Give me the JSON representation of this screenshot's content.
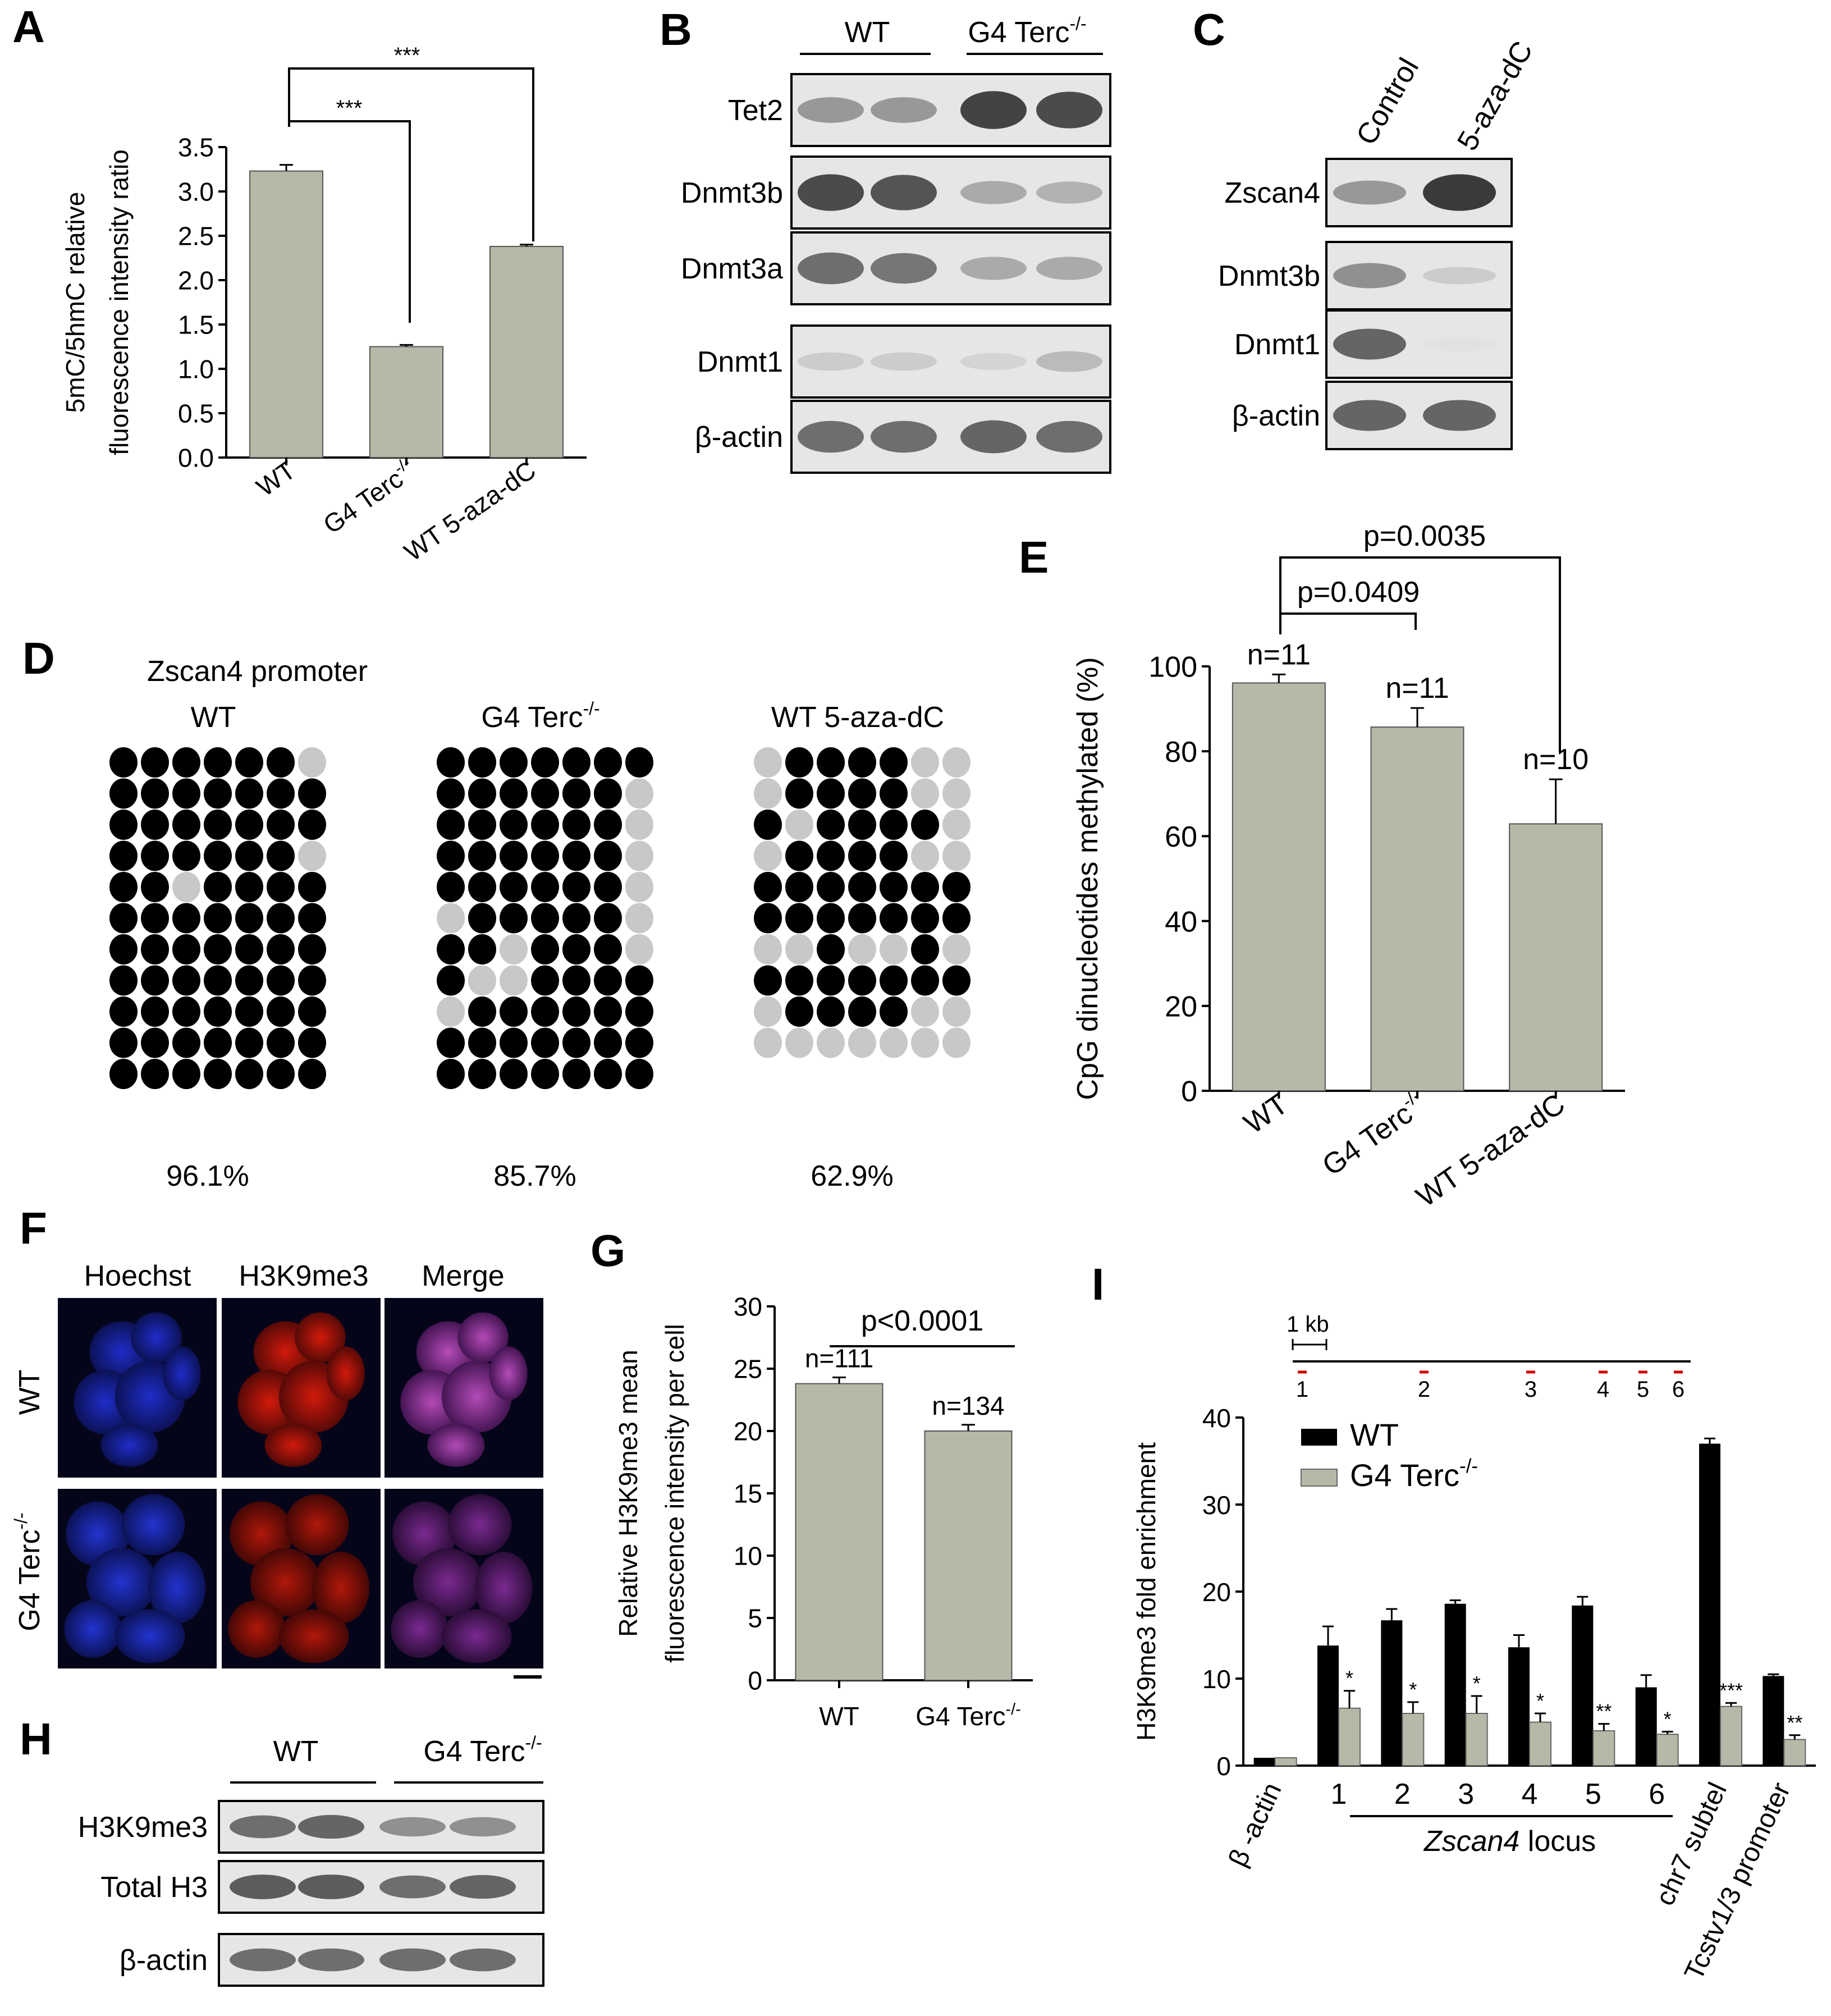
{
  "colors": {
    "bar_gray": "#b8b8a8",
    "bar_black": "#000000",
    "cpg_unmeth": "#c8c8c8",
    "blot_bg": "#e6e6e6",
    "blot_band": "#3a3a3a"
  },
  "panels": {
    "A": {
      "letter": "A",
      "sig1": "***",
      "sig2": "***"
    },
    "B": {
      "letter": "B",
      "group1": "WT",
      "group2": "G4 Terc",
      "group2_sup": "-/-",
      "rows": [
        "Tet2",
        "Dnmt3b",
        "Dnmt3a",
        "Dnmt1",
        "β-actin"
      ],
      "band_intensity": [
        [
          0.45,
          0.45,
          0.95,
          0.9
        ],
        [
          0.9,
          0.85,
          0.35,
          0.3
        ],
        [
          0.7,
          0.65,
          0.35,
          0.35
        ],
        [
          0.15,
          0.15,
          0.1,
          0.25
        ],
        [
          0.7,
          0.7,
          0.75,
          0.7
        ]
      ]
    },
    "C": {
      "letter": "C",
      "lanes": [
        "Control",
        "5-aza-dC"
      ],
      "rows": [
        "Zscan4",
        "Dnmt3b",
        "Dnmt1",
        "β-actin"
      ],
      "band_intensity": [
        [
          0.45,
          1.0
        ],
        [
          0.5,
          0.15
        ],
        [
          0.75,
          0.02
        ],
        [
          0.75,
          0.75
        ]
      ]
    },
    "D": {
      "letter": "D",
      "title": "Zscan4 promoter",
      "groups": [
        {
          "label": "WT",
          "sup": "",
          "percent": "96.1%",
          "rows": [
            "1111110",
            "1111111",
            "1111111",
            "1111110",
            "1101111",
            "1111111",
            "1111111",
            "1111111",
            "1111111",
            "1111111",
            "1111111"
          ]
        },
        {
          "label": "G4 Terc",
          "sup": "-/-",
          "percent": "85.7%",
          "rows": [
            "1111111",
            "1111110",
            "1111110",
            "1111110",
            "1111110",
            "0111110",
            "1101110",
            "1001111",
            "0111111",
            "1111111",
            "1111111"
          ]
        },
        {
          "label": "WT 5-aza-dC",
          "sup": "",
          "percent": "62.9%",
          "rows": [
            "0111100",
            "0111100",
            "1011110",
            "0111100",
            "1111111",
            "1111111",
            "0010010",
            "1111111",
            "0111100",
            "0000000"
          ]
        }
      ]
    },
    "E": {
      "letter": "E",
      "p1": "p=0.0409",
      "p2": "p=0.0035"
    },
    "F": {
      "letter": "F",
      "cols": [
        "Hoechst",
        "H3K9me3",
        "Merge"
      ],
      "row1": "WT",
      "row2": "G4 Terc",
      "row2_sup": "-/-"
    },
    "G": {
      "letter": "G",
      "p": "p<0.0001"
    },
    "H": {
      "letter": "H",
      "group1": "WT",
      "group2": "G4 Terc",
      "group2_sup": "-/-",
      "rows": [
        "H3K9me3",
        "Total H3",
        "β-actin"
      ],
      "band_intensity": [
        [
          0.7,
          0.75,
          0.5,
          0.5
        ],
        [
          0.8,
          0.8,
          0.7,
          0.75
        ],
        [
          0.7,
          0.7,
          0.7,
          0.7
        ]
      ]
    },
    "I": {
      "letter": "I",
      "scale_label": "1 kb",
      "map_sites": [
        "1",
        "2",
        "3",
        "4",
        "5",
        "6"
      ],
      "locus_label": "Zscan4",
      "locus_suffix": " locus"
    }
  },
  "chart_data": [
    {
      "id": "A",
      "type": "bar",
      "ylabel_line1": "5mC/5hmC relative",
      "ylabel_line2": "fluorescence intensity ratio",
      "categories": [
        "WT",
        "G4 Terc",
        "WT 5-aza-dC"
      ],
      "category_sups": [
        "",
        "-/-",
        ""
      ],
      "values": [
        3.23,
        1.25,
        2.38
      ],
      "errors": [
        0.07,
        0.02,
        0.02
      ],
      "ylim": [
        0,
        3.5
      ],
      "yticks": [
        "0.0",
        "0.5",
        "1.0",
        "1.5",
        "2.0",
        "2.5",
        "3.0",
        "3.5"
      ]
    },
    {
      "id": "E",
      "type": "bar",
      "ylabel": "CpG dinucleotides methylated (%)",
      "categories": [
        "WT",
        "G4 Terc",
        "WT 5-aza-dC"
      ],
      "category_sups": [
        "",
        "-/-",
        ""
      ],
      "values": [
        96.1,
        85.7,
        62.9
      ],
      "errors": [
        2,
        4.5,
        10.5
      ],
      "n_labels": [
        "n=11",
        "n=11",
        "n=10"
      ],
      "ylim": [
        0,
        100
      ],
      "yticks": [
        "0",
        "20",
        "40",
        "60",
        "80",
        "100"
      ]
    },
    {
      "id": "G",
      "type": "bar",
      "ylabel_line1": "Relative H3K9me3 mean",
      "ylabel_line2": "fluorescence intensity per cell",
      "categories": [
        "WT",
        "G4 Terc"
      ],
      "category_sups": [
        "",
        "-/-"
      ],
      "values": [
        23.8,
        20.0
      ],
      "errors": [
        0.5,
        0.5
      ],
      "n_labels": [
        "n=111",
        "n=134"
      ],
      "ylim": [
        0,
        30
      ],
      "yticks": [
        "0",
        "5",
        "10",
        "15",
        "20",
        "25",
        "30"
      ]
    },
    {
      "id": "I",
      "type": "bar",
      "ylabel": "H3K9me3 fold enrichment",
      "categories": [
        "β -actin",
        "1",
        "2",
        "3",
        "4",
        "5",
        "6",
        "chr7 subtel",
        "Tcstv1/3 promoter"
      ],
      "series": [
        {
          "name": "WT",
          "values": [
            0.9,
            13.8,
            16.7,
            18.6,
            13.6,
            18.4,
            9.0,
            37.0,
            10.3
          ],
          "errors": [
            0,
            2.2,
            1.3,
            0.4,
            1.4,
            1.0,
            1.4,
            0.6,
            0.2
          ]
        },
        {
          "name": "G4 Terc",
          "sup": "-/-",
          "values": [
            0.9,
            6.6,
            6.0,
            6.0,
            5.0,
            4.0,
            3.6,
            6.8,
            3.0
          ],
          "errors": [
            0,
            2.0,
            1.3,
            2.0,
            1.0,
            0.8,
            0.3,
            0.4,
            0.5
          ]
        }
      ],
      "sig": [
        "",
        "*",
        "*",
        "*",
        "*",
        "**",
        "*",
        "***",
        "**"
      ],
      "ylim": [
        0,
        40
      ],
      "yticks": [
        "0",
        "10",
        "20",
        "30",
        "40"
      ]
    }
  ]
}
